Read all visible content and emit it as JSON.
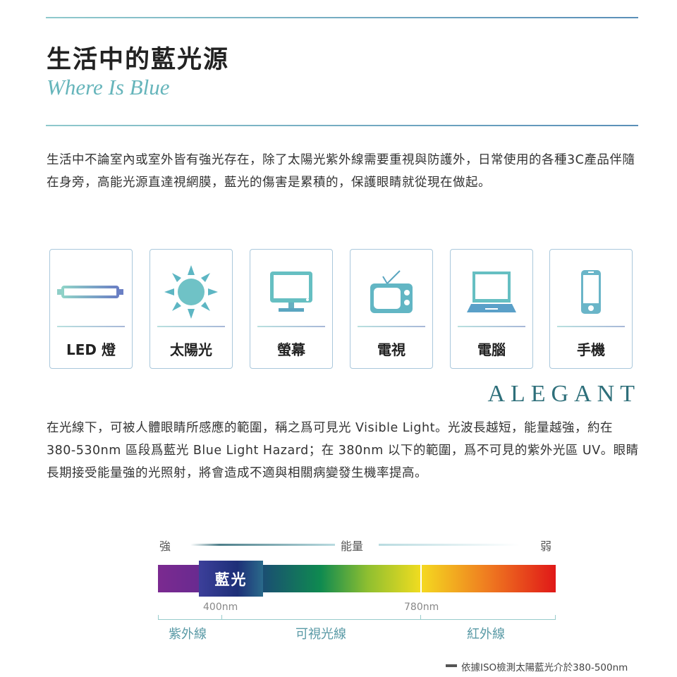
{
  "header": {
    "title": "生活中的藍光源",
    "subtitle": "Where Is Blue"
  },
  "intro": "生活中不論室內或室外皆有強光存在，除了太陽光紫外線需要重視與防護外，日常使用的各種3C產品伴隨在身旁，高能光源直達視網膜，藍光的傷害是累積的，保護眼睛就從現在做起。",
  "sources": [
    {
      "label": "LED 燈",
      "icon": "led-tube-icon"
    },
    {
      "label": "太陽光",
      "icon": "sun-icon"
    },
    {
      "label": "螢幕",
      "icon": "monitor-icon"
    },
    {
      "label": "電視",
      "icon": "tv-icon"
    },
    {
      "label": "電腦",
      "icon": "laptop-icon"
    },
    {
      "label": "手機",
      "icon": "phone-icon"
    }
  ],
  "brand": "ALEGANT",
  "body": "在光線下，可被人體眼睛所感應的範圍，稱之爲可見光 Visible Light。光波長越短，能量越強，約在 380-530nm 區段爲藍光 Blue Light Hazard；在 380nm 以下的範圍，爲不可見的紫外光區 UV。眼睛長期接受能量強的光照射，將會造成不適與相關病變發生機率提高。",
  "spectrum": {
    "strong": "強",
    "energy": "能量",
    "weak": "弱",
    "blue_light": "藍光",
    "mark_400": "400nm",
    "mark_780": "780nm",
    "uv": "紫外線",
    "visible": "可視光線",
    "ir": "紅外線",
    "note": "依據ISO檢測太陽藍光介於380-500nm"
  }
}
